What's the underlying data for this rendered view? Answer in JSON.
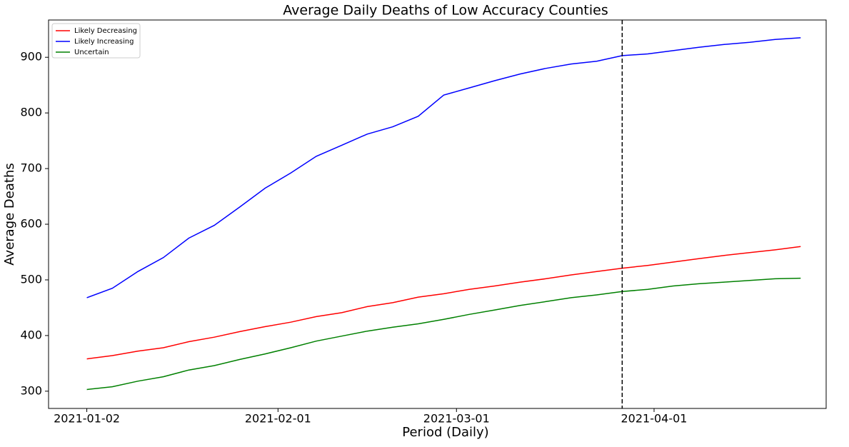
{
  "chart_data": {
    "type": "line",
    "title": "Average Daily Deaths of Low Accuracy Counties",
    "x_label": "Period (Daily)",
    "y_label": "Average Deaths",
    "x": [
      "2021-01-02",
      "2021-01-06",
      "2021-01-10",
      "2021-01-14",
      "2021-01-18",
      "2021-01-22",
      "2021-01-26",
      "2021-01-30",
      "2021-02-03",
      "2021-02-07",
      "2021-02-11",
      "2021-02-15",
      "2021-02-19",
      "2021-02-23",
      "2021-02-27",
      "2021-03-03",
      "2021-03-07",
      "2021-03-11",
      "2021-03-15",
      "2021-03-19",
      "2021-03-23",
      "2021-03-27",
      "2021-03-31",
      "2021-04-04",
      "2021-04-08",
      "2021-04-12",
      "2021-04-16",
      "2021-04-20",
      "2021-04-24"
    ],
    "series": [
      {
        "name": "Likely Decreasing",
        "color": "#ff0000",
        "values": [
          358,
          364,
          372,
          378,
          389,
          397,
          407,
          416,
          424,
          434,
          441,
          452,
          459,
          469,
          475,
          483,
          489,
          496,
          502,
          509,
          515,
          521,
          526,
          532,
          538,
          544,
          549,
          554,
          560
        ]
      },
      {
        "name": "Likely Increasing",
        "color": "#0000ff",
        "values": [
          468,
          485,
          515,
          540,
          575,
          598,
          631,
          665,
          692,
          722,
          742,
          762,
          775,
          794,
          832,
          845,
          858,
          870,
          880,
          888,
          893,
          903,
          906,
          912,
          918,
          923,
          927,
          932,
          935
        ]
      },
      {
        "name": "Uncertain",
        "color": "#008000",
        "values": [
          303,
          308,
          318,
          326,
          338,
          346,
          357,
          367,
          378,
          390,
          399,
          408,
          415,
          421,
          429,
          438,
          446,
          454,
          461,
          468,
          473,
          479,
          483,
          489,
          493,
          496,
          499,
          502,
          503
        ]
      }
    ],
    "vline": "2021-03-27",
    "xlim": [
      "2020-12-27",
      "2021-04-28"
    ],
    "xticks": [
      "2021-01-02",
      "2021-02-01",
      "2021-03-01",
      "2021-04-01"
    ],
    "ylim": [
      269,
      967
    ],
    "yticks": [
      300,
      400,
      500,
      600,
      700,
      800,
      900
    ],
    "legend": "upper-left",
    "grid": false
  }
}
